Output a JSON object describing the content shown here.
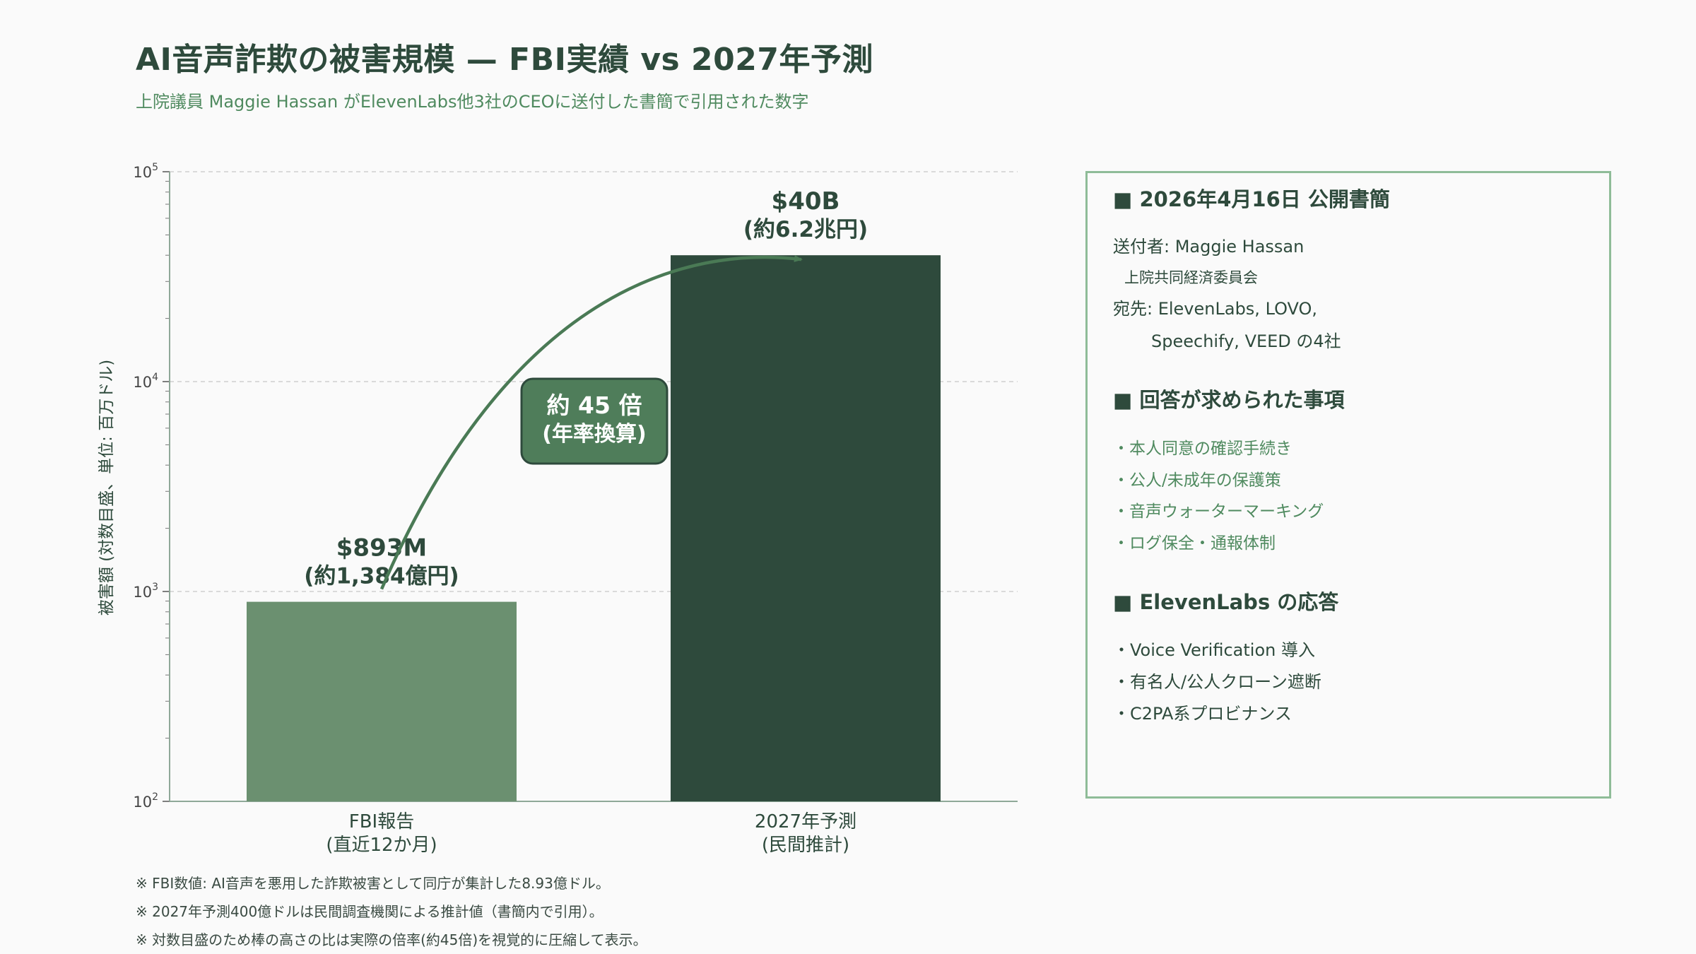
{
  "title": "AI音声詐欺の被害規模 — FBI実績 vs 2027年予測",
  "subtitle": "上院議員 Maggie Hassan がElevenLabs他3社のCEOに送付した書簡で引用された数字",
  "chart_data": {
    "type": "bar",
    "scale": "log",
    "ylabel": "被害額 (対数目盛、単位: 百万ドル)",
    "ylim": [
      100,
      100000
    ],
    "ytick_labels": [
      "10^2",
      "10^3",
      "10^4",
      "10^5"
    ],
    "grid": true,
    "categories": [
      {
        "line1": "FBI報告",
        "line2": "(直近12か月)"
      },
      {
        "line1": "2027年予測",
        "line2": "(民間推計)"
      }
    ],
    "values": [
      893,
      40000
    ],
    "bar_colors": [
      "#6b9070",
      "#2e4a3c"
    ],
    "data_labels": [
      {
        "line1": "$893M",
        "line2": "(約1,384億円)"
      },
      {
        "line1": "$40B",
        "line2": "(約6.2兆円)"
      }
    ],
    "annotation": {
      "line1": "約 45 倍",
      "line2": "(年率換算)"
    }
  },
  "panel": {
    "heading1": "■ 2026年4月16日 公開書簡",
    "sender": "送付者: Maggie Hassan",
    "sender_org": "上院共同経済委員会",
    "recipient": "宛先: ElevenLabs, LOVO,",
    "recipient2": "Speechify, VEED の4社",
    "heading2": "■ 回答が求められた事項",
    "items": [
      "・本人同意の確認手続き",
      "・公人/未成年の保護策",
      "・音声ウォーターマーキング",
      "・ログ保全・通報体制"
    ],
    "heading3": "■ ElevenLabs の応答",
    "responses": [
      "・Voice Verification 導入",
      "・有名人/公人クローン遮断",
      "・C2PA系プロビナンス"
    ]
  },
  "notes": [
    "※ FBI数値: AI音声を悪用した詐欺被害として同庁が集計した8.93億ドル。",
    "※ 2027年予測400億ドルは民間調査機関による推計値（書簡内で引用）。",
    "※ 対数目盛のため棒の高さの比は実際の倍率(約45倍)を視覚的に圧縮して表示。"
  ],
  "colors": {
    "accent": "#4f8a5f",
    "dark": "#2e4a3c",
    "light_bar": "#6b9070",
    "panel_border": "#8fbc98"
  }
}
